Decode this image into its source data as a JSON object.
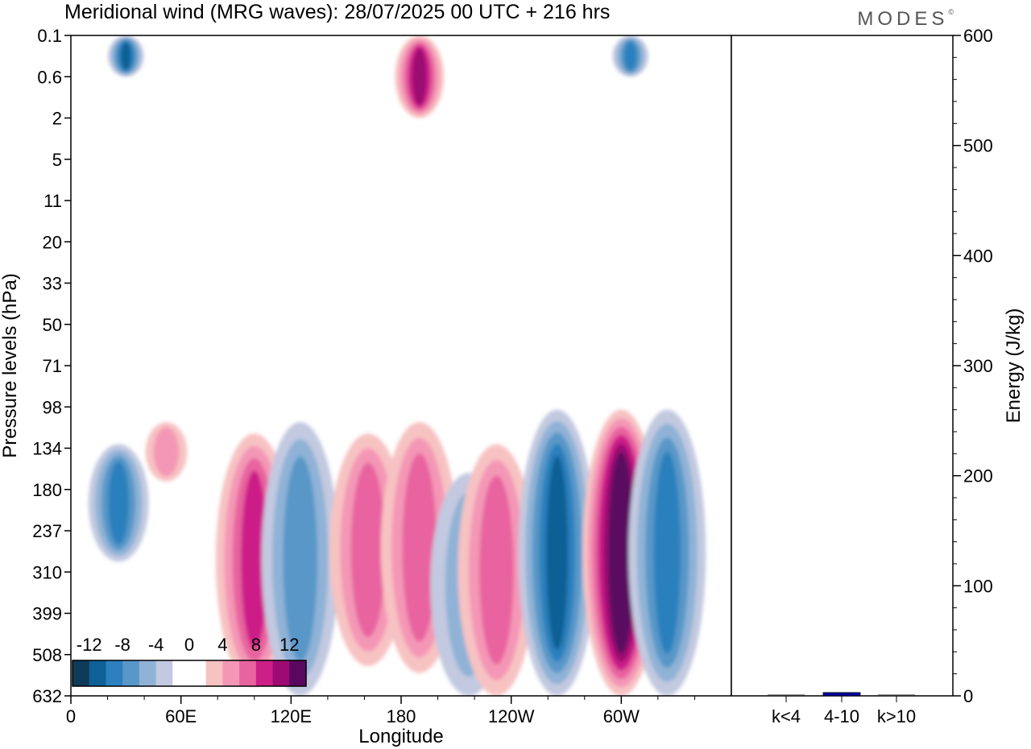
{
  "header": {
    "title": "Meridional wind (MRG waves):  28/07/2025  00 UTC  + 216 hrs",
    "brand": "MODES",
    "brand_mark": "©"
  },
  "chart_data": [
    {
      "type": "heatmap",
      "title": "Meridional wind (MRG waves):  28/07/2025  00 UTC  + 216 hrs",
      "xlabel": "Longitude",
      "ylabel": "Pressure levels (hPa)",
      "x_ticks": [
        "0",
        "60E",
        "120E",
        "180",
        "120W",
        "60W"
      ],
      "x_range_deg": [
        0,
        360
      ],
      "y_ticks": [
        "0.1",
        "0.6",
        "2",
        "5",
        "11",
        "20",
        "33",
        "50",
        "71",
        "98",
        "134",
        "180",
        "237",
        "310",
        "399",
        "508",
        "632"
      ],
      "colorbar": {
        "labels": [
          "-12",
          "-8",
          "-4",
          "0",
          "4",
          "8",
          "12"
        ],
        "levels": [
          -14,
          -12,
          -10,
          -8,
          -6,
          -4,
          -2,
          0,
          2,
          4,
          6,
          8,
          10,
          12,
          14
        ],
        "colors": [
          "#0f3a5a",
          "#0f6096",
          "#2b80bd",
          "#5997c8",
          "#8fb2d6",
          "#c2c9e0",
          "#ffffff",
          "#ffffff",
          "#f7c2c2",
          "#f497b6",
          "#e8639f",
          "#cc1f88",
          "#9c0a72",
          "#5a0760"
        ]
      },
      "features": [
        {
          "name": "mrg-pos-100E",
          "lon": 100,
          "p_top": 120,
          "p_bot": 600,
          "value": 9
        },
        {
          "name": "mrg-neg-125E",
          "lon": 125,
          "p_top": 110,
          "p_bot": 632,
          "value": -6
        },
        {
          "name": "mrg-pos-160E",
          "lon": 162,
          "p_top": 120,
          "p_bot": 540,
          "value": 6
        },
        {
          "name": "mrg-pos-170W",
          "lon": 190,
          "p_top": 110,
          "p_bot": 560,
          "value": 6
        },
        {
          "name": "mrg-neg-140W",
          "lon": 217,
          "p_top": 160,
          "p_bot": 632,
          "value": -4
        },
        {
          "name": "mrg-pos-130W",
          "lon": 232,
          "p_top": 130,
          "p_bot": 632,
          "value": 7
        },
        {
          "name": "mrg-neg-95W",
          "lon": 265,
          "p_top": 100,
          "p_bot": 632,
          "value": -11
        },
        {
          "name": "mrg-pos-60W",
          "lon": 300,
          "p_top": 100,
          "p_bot": 632,
          "value": 14
        },
        {
          "name": "mrg-neg-35W",
          "lon": 325,
          "p_top": 100,
          "p_bot": 632,
          "value": -9
        },
        {
          "name": "mrg-neg-25E",
          "lon": 26,
          "p_top": 130,
          "p_bot": 290,
          "value": -8
        },
        {
          "name": "mrg-pos-50E",
          "lon": 52,
          "p_top": 110,
          "p_bot": 170,
          "value": 5
        },
        {
          "name": "strat-pos-200E",
          "lon": 190,
          "p_top": 0.1,
          "p_bot": 2,
          "value": 10
        },
        {
          "name": "strat-neg-30E",
          "lon": 30,
          "p_top": 0.1,
          "p_bot": 0.6,
          "value": -10
        },
        {
          "name": "strat-neg-300E",
          "lon": 305,
          "p_top": 0.1,
          "p_bot": 0.6,
          "value": -9
        }
      ]
    },
    {
      "type": "bar",
      "ylabel": "Energy (J/kg)",
      "categories": [
        "k<4",
        "4-10",
        "k>10"
      ],
      "values": [
        0,
        3,
        0
      ],
      "ylim": [
        0,
        600
      ],
      "y_ticks": [
        "0",
        "100",
        "200",
        "300",
        "400",
        "500",
        "600"
      ],
      "bar_color": "#0000a0"
    }
  ]
}
